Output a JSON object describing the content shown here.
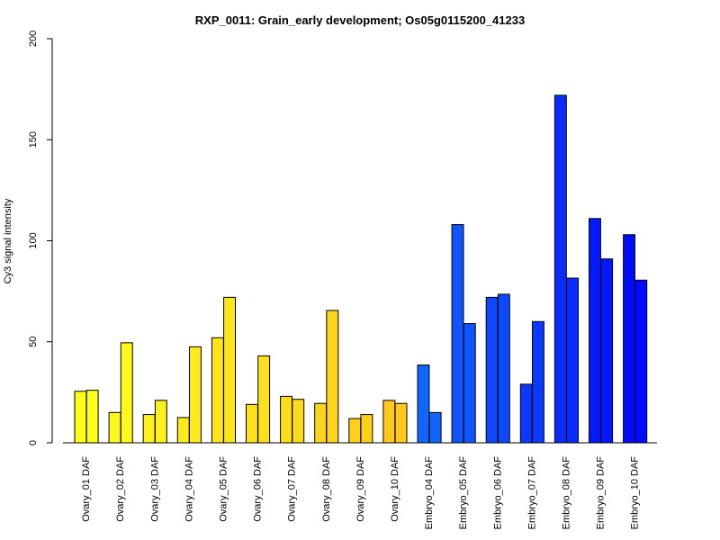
{
  "chart_data": {
    "type": "bar",
    "title": "RXP_0011: Grain_early development; Os05g0115200_41233",
    "ylabel": "Cy3 signal intensity",
    "xlabel": "",
    "ylim": [
      0,
      200
    ],
    "yticks": [
      "0",
      "50",
      "100",
      "150",
      "200"
    ],
    "grid": false,
    "categories": [
      "Ovary_01 DAF",
      "Ovary_02 DAF",
      "Ovary_03 DAF",
      "Ovary_04 DAF",
      "Ovary_05 DAF",
      "Ovary_06 DAF",
      "Ovary_07 DAF",
      "Ovary_08 DAF",
      "Ovary_09 DAF",
      "Ovary_10 DAF",
      "Embryo_04 DAF",
      "Embryo_05 DAF",
      "Embryo_06 DAF",
      "Embryo_07 DAF",
      "Embryo_08 DAF",
      "Embryo_09 DAF",
      "Embryo_10 DAF"
    ],
    "series": [
      {
        "values": [
          25.5,
          15,
          14,
          12.5,
          52,
          19,
          23,
          19.5,
          12,
          21,
          38.5,
          108,
          72,
          29,
          172,
          111,
          103
        ]
      },
      {
        "values": [
          26,
          49.5,
          21,
          47.5,
          72,
          43,
          21.5,
          65.5,
          14,
          19.5,
          15,
          59,
          73.5,
          60,
          81.5,
          91,
          80.5
        ]
      }
    ],
    "colors": [
      "#FFFF1A",
      "#FFF91A",
      "#FFF01A",
      "#FFEA1A",
      "#FFE41A",
      "#FFE01A",
      "#FFDC1A",
      "#FFD41A",
      "#FFD01A",
      "#FFC81A",
      "#1166FF",
      "#0F55FF",
      "#0D48FF",
      "#0B3AFF",
      "#082CFF",
      "#0519FF",
      "#000CFF"
    ]
  }
}
